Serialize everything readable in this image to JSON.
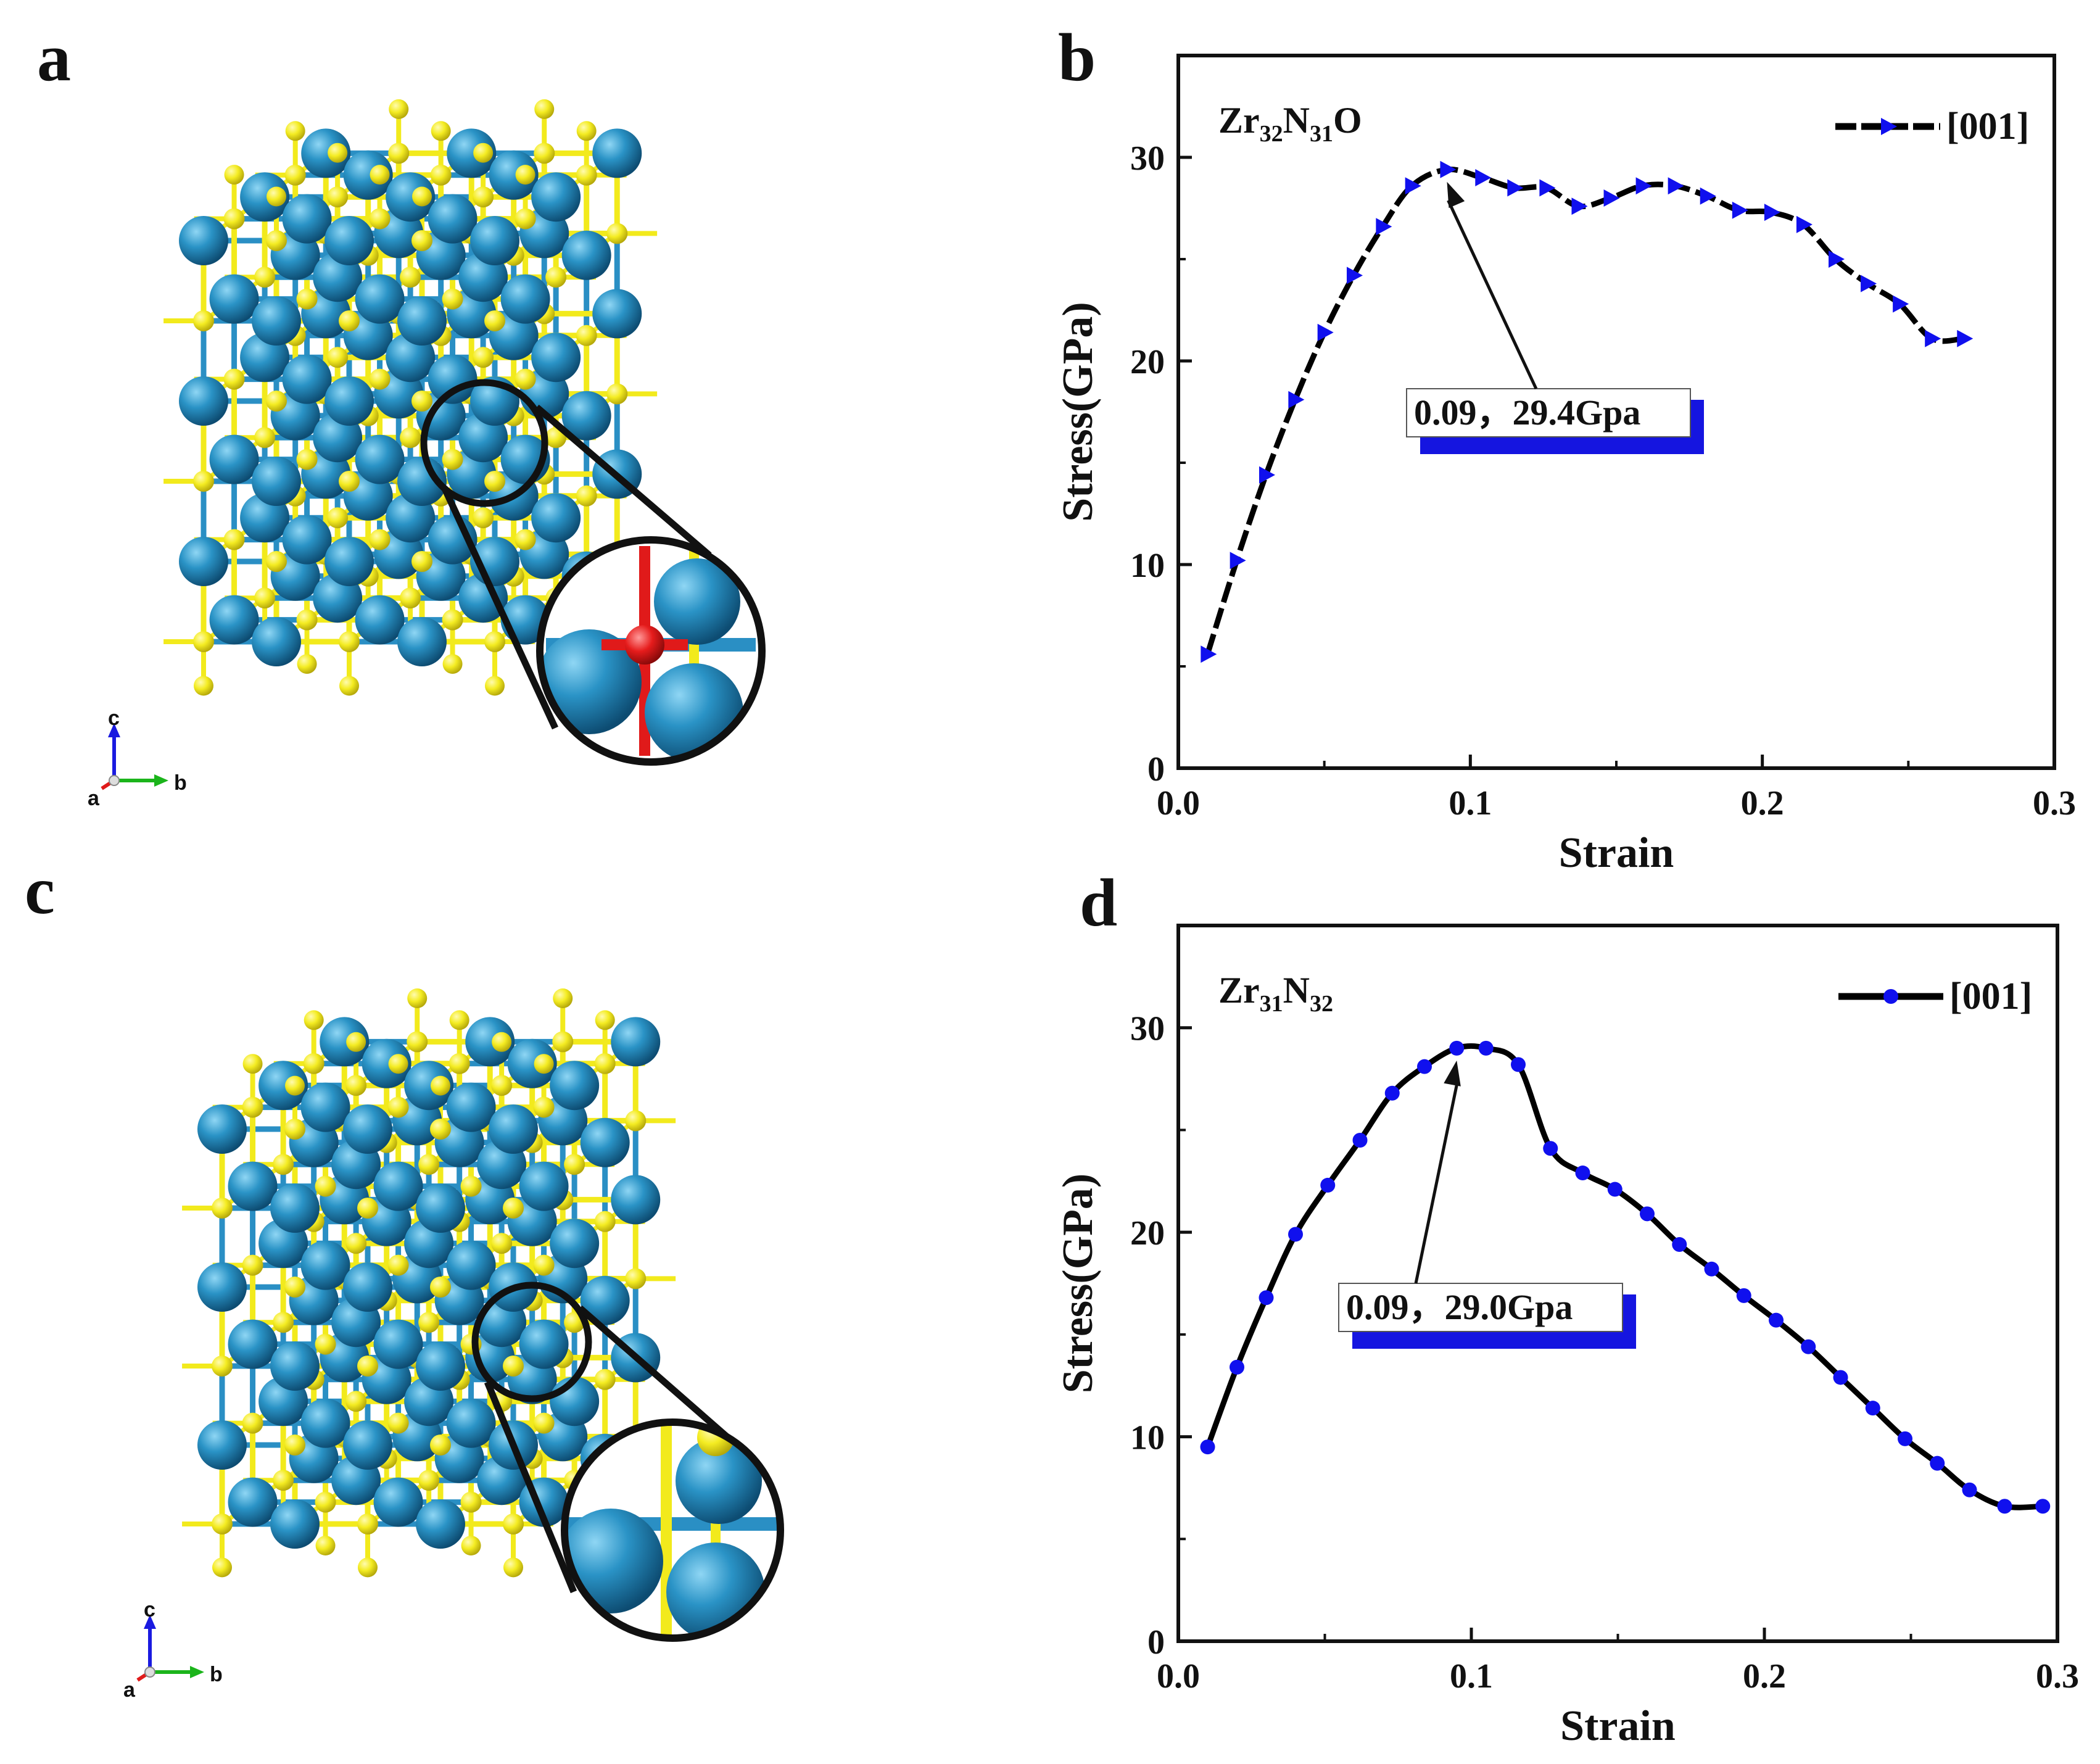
{
  "panels": {
    "a": "a",
    "b": "b",
    "c": "c",
    "d": "d"
  },
  "colors": {
    "zr": "#1f7fb4",
    "n": "#f2ea1c",
    "o": "#e01a1a",
    "bond_a": "#2a8fc4",
    "series_marker": "#1010ee",
    "curve": "#000000",
    "anno_bar": "#1515e0"
  },
  "structures": {
    "a": {
      "axes": {
        "c": "c",
        "a": "a",
        "b": "b"
      },
      "highlight": "oxygen-substitution"
    },
    "c": {
      "axes": {
        "c": "c",
        "a": "a",
        "b": "b"
      },
      "highlight": "zr-vacancy"
    }
  },
  "chart_data": [
    {
      "id": "b",
      "type": "line",
      "title_main1": "Zr",
      "title_sub1": "32",
      "title_main2": "N",
      "title_sub2": "31",
      "title_main3": "O",
      "xlabel": "Strain",
      "ylabel": "Stress(GPa)",
      "xlim": [
        0,
        0.3
      ],
      "ylim": [
        0,
        35
      ],
      "xticks": [
        0,
        0.1,
        0.2,
        0.3
      ],
      "xtick_labels": [
        "0.0",
        "0.1",
        "0.2",
        "0.3"
      ],
      "yticks": [
        0,
        10,
        20,
        30
      ],
      "ytick_labels": [
        "0",
        "10",
        "20",
        "30"
      ],
      "marker": "triangle-right",
      "line_style": "dashed",
      "legend": "[001]",
      "series": [
        {
          "name": "[001]",
          "x": [
            0.01,
            0.02,
            0.03,
            0.04,
            0.05,
            0.06,
            0.07,
            0.08,
            0.092,
            0.104,
            0.115,
            0.126,
            0.137,
            0.148,
            0.159,
            0.17,
            0.181,
            0.192,
            0.203,
            0.214,
            0.225,
            0.236,
            0.247,
            0.258,
            0.269
          ],
          "y": [
            5.6,
            10.2,
            14.4,
            18.1,
            21.4,
            24.2,
            26.6,
            28.6,
            29.4,
            29.0,
            28.5,
            28.5,
            27.6,
            28.0,
            28.6,
            28.6,
            28.1,
            27.4,
            27.3,
            26.7,
            25.0,
            23.8,
            22.8,
            21.1,
            21.1
          ]
        }
      ],
      "annotation": {
        "text": "0.09，29.4Gpa",
        "x": 0.092,
        "y": 29.4
      }
    },
    {
      "id": "d",
      "type": "line",
      "title_main1": "Zr",
      "title_sub1": "31",
      "title_main2": "N",
      "title_sub2": "32",
      "title_main3": "",
      "xlabel": "Strain",
      "ylabel": "Stress(GPa)",
      "xlim": [
        0,
        0.3
      ],
      "ylim": [
        0,
        35
      ],
      "xticks": [
        0,
        0.1,
        0.2,
        0.3
      ],
      "xtick_labels": [
        "0.0",
        "0.1",
        "0.2",
        "0.3"
      ],
      "yticks": [
        0,
        10,
        20,
        30
      ],
      "ytick_labels": [
        "0",
        "10",
        "20",
        "30"
      ],
      "marker": "circle",
      "line_style": "solid",
      "legend": "[001]",
      "series": [
        {
          "name": "[001]",
          "x": [
            0.01,
            0.02,
            0.03,
            0.04,
            0.051,
            0.062,
            0.073,
            0.084,
            0.095,
            0.105,
            0.116,
            0.127,
            0.138,
            0.149,
            0.16,
            0.171,
            0.182,
            0.193,
            0.204,
            0.215,
            0.226,
            0.237,
            0.248,
            0.259,
            0.27,
            0.282,
            0.295
          ],
          "y": [
            9.5,
            13.4,
            16.8,
            19.9,
            22.3,
            24.5,
            26.8,
            28.1,
            29.0,
            29.0,
            28.2,
            24.1,
            22.9,
            22.1,
            20.9,
            19.4,
            18.2,
            16.9,
            15.7,
            14.4,
            12.9,
            11.4,
            9.9,
            8.7,
            7.4,
            6.6,
            6.6
          ]
        }
      ],
      "annotation": {
        "text": "0.09，29.0Gpa",
        "x": 0.095,
        "y": 29.0
      }
    }
  ]
}
